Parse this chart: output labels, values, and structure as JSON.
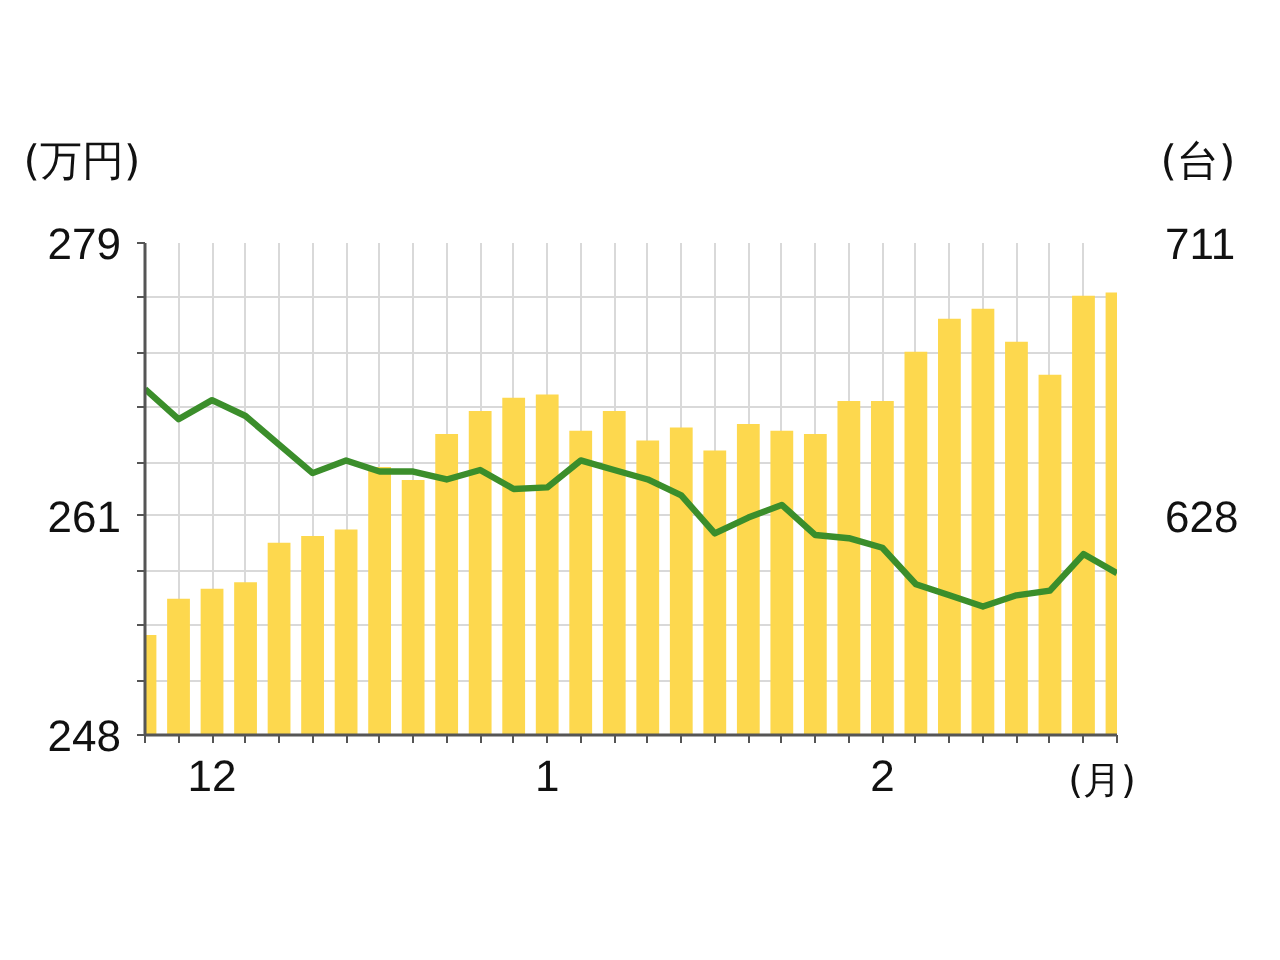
{
  "chart_data": {
    "type": "bar",
    "categories": [
      null,
      null,
      "12",
      null,
      null,
      null,
      null,
      null,
      null,
      null,
      null,
      null,
      "1",
      null,
      null,
      null,
      null,
      null,
      null,
      null,
      null,
      null,
      "2",
      null,
      null,
      null,
      null,
      null,
      null,
      null
    ],
    "series": [
      {
        "axis": "y2",
        "color": "#fdd84e",
        "values": [
          592,
          603,
          606,
          608,
          620,
          622,
          624,
          643,
          639,
          653,
          660,
          664,
          665,
          654,
          660,
          651,
          655,
          648,
          656,
          654,
          653,
          663,
          663,
          678,
          688,
          691,
          681,
          671,
          695,
          696
        ]
      },
      {
        "type": "line",
        "color": "#3b8e2b",
        "values": [
          269.4,
          267.5,
          268.7,
          267.7,
          265.9,
          264.1,
          264.9,
          264.2,
          264.2,
          263.7,
          264.3,
          263.1,
          263.2,
          264.9,
          264.3,
          263.7,
          262.7,
          260.3,
          261.3,
          262.1,
          260.2,
          260.0,
          259.4,
          257.1,
          256.4,
          255.7,
          256.4,
          256.7,
          259.0,
          257.8
        ]
      }
    ],
    "xlabel": "(月)",
    "ylabel": "(万円)",
    "y2label": "(台)",
    "ylim": [
      247.6,
      278.6
    ],
    "yticks": [
      {
        "value": 278.6,
        "label": "279"
      },
      {
        "value": 275.2,
        "label": null
      },
      {
        "value": 271.7,
        "label": null
      },
      {
        "value": 268.3,
        "label": null
      },
      {
        "value": 264.8,
        "label": null
      },
      {
        "value": 261.4,
        "label": "261"
      },
      {
        "value": 257.9,
        "label": null
      },
      {
        "value": 254.5,
        "label": null
      },
      {
        "value": 251.0,
        "label": null
      },
      {
        "value": 247.6,
        "label": "248"
      }
    ],
    "y2lim": [
      561.6,
      711
    ],
    "y2ticks": [
      711,
      628
    ],
    "grid": true
  }
}
